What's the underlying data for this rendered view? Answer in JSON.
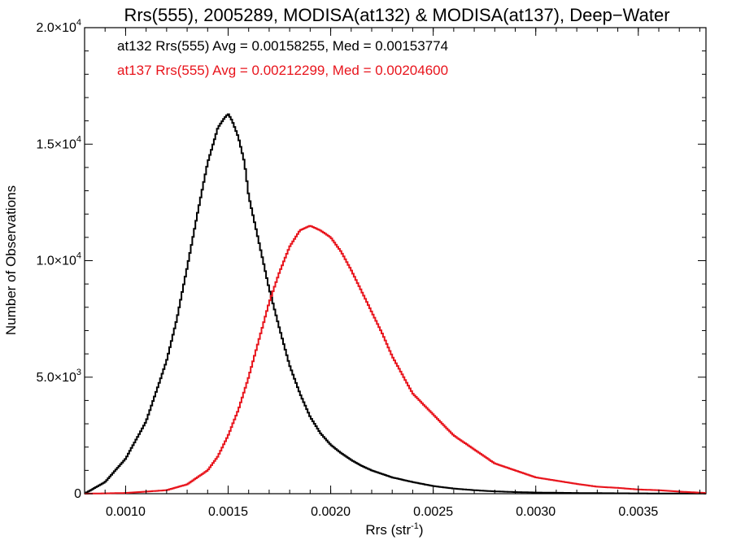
{
  "chart_data": {
    "type": "line",
    "title": "Rrs(555), 2005289, MODISA(at132) & MODISA(at137), Deep−Water",
    "xlabel": "Rrs (str",
    "xlabel_sup": "-1",
    "xlabel_close": ")",
    "ylabel": "Number of Observations",
    "xlim": [
      0.0008,
      0.00383
    ],
    "ylim": [
      0,
      20000
    ],
    "x_ticks": [
      {
        "value": 0.001,
        "label": "0.0010"
      },
      {
        "value": 0.0015,
        "label": "0.0015"
      },
      {
        "value": 0.002,
        "label": "0.0020"
      },
      {
        "value": 0.0025,
        "label": "0.0025"
      },
      {
        "value": 0.003,
        "label": "0.0030"
      },
      {
        "value": 0.0035,
        "label": "0.0035"
      }
    ],
    "y_ticks": [
      {
        "value": 0,
        "mant": "0",
        "exp": ""
      },
      {
        "value": 5000,
        "mant": "5.0×10",
        "exp": "3"
      },
      {
        "value": 10000,
        "mant": "1.0×10",
        "exp": "4"
      },
      {
        "value": 15000,
        "mant": "1.5×10",
        "exp": "4"
      },
      {
        "value": 20000,
        "mant": "2.0×10",
        "exp": "4"
      }
    ],
    "grid": false,
    "legend_position": "top-left",
    "series": [
      {
        "name": "at132",
        "color": "#000000",
        "stats_label": "at132 Rrs(555) Avg = 0.00158255, Med = 0.00153774",
        "x": [
          0.0008,
          0.0009,
          0.001,
          0.0011,
          0.0012,
          0.00125,
          0.0013,
          0.00135,
          0.0014,
          0.00145,
          0.00148,
          0.0015,
          0.00152,
          0.00155,
          0.00158,
          0.0016,
          0.00165,
          0.0017,
          0.00175,
          0.0018,
          0.00185,
          0.0019,
          0.00195,
          0.002,
          0.00205,
          0.0021,
          0.00215,
          0.0022,
          0.00225,
          0.0023,
          0.0024,
          0.0025,
          0.0026,
          0.0027,
          0.0028,
          0.0029,
          0.003,
          0.0032,
          0.0034,
          0.0036,
          0.00383
        ],
        "y": [
          0,
          500,
          1500,
          3100,
          5700,
          7500,
          9700,
          12000,
          14200,
          15700,
          16100,
          16300,
          16000,
          15300,
          14200,
          12800,
          10800,
          8800,
          7100,
          5500,
          4300,
          3300,
          2600,
          2100,
          1750,
          1450,
          1200,
          1000,
          850,
          700,
          500,
          330,
          220,
          150,
          100,
          70,
          50,
          30,
          18,
          10,
          5
        ]
      },
      {
        "name": "at137",
        "color": "#e8141c",
        "stats_label": "at137 Rrs(555) Avg = 0.00212299, Med = 0.00204600",
        "x": [
          0.0008,
          0.001,
          0.0012,
          0.0013,
          0.0014,
          0.00145,
          0.0015,
          0.00155,
          0.0016,
          0.00165,
          0.0017,
          0.00175,
          0.0018,
          0.00185,
          0.0019,
          0.00195,
          0.002,
          0.00205,
          0.0021,
          0.00215,
          0.0022,
          0.00225,
          0.0023,
          0.0024,
          0.0025,
          0.0026,
          0.0027,
          0.0028,
          0.0029,
          0.003,
          0.0031,
          0.0032,
          0.0033,
          0.0034,
          0.0035,
          0.0036,
          0.0037,
          0.00383
        ],
        "y": [
          0,
          30,
          150,
          400,
          1000,
          1600,
          2500,
          3600,
          5000,
          6600,
          8200,
          9500,
          10600,
          11300,
          11500,
          11300,
          11000,
          10400,
          9600,
          8700,
          7800,
          6900,
          5900,
          4300,
          3400,
          2500,
          1900,
          1300,
          1000,
          700,
          560,
          420,
          300,
          250,
          180,
          150,
          90,
          30
        ]
      }
    ]
  }
}
